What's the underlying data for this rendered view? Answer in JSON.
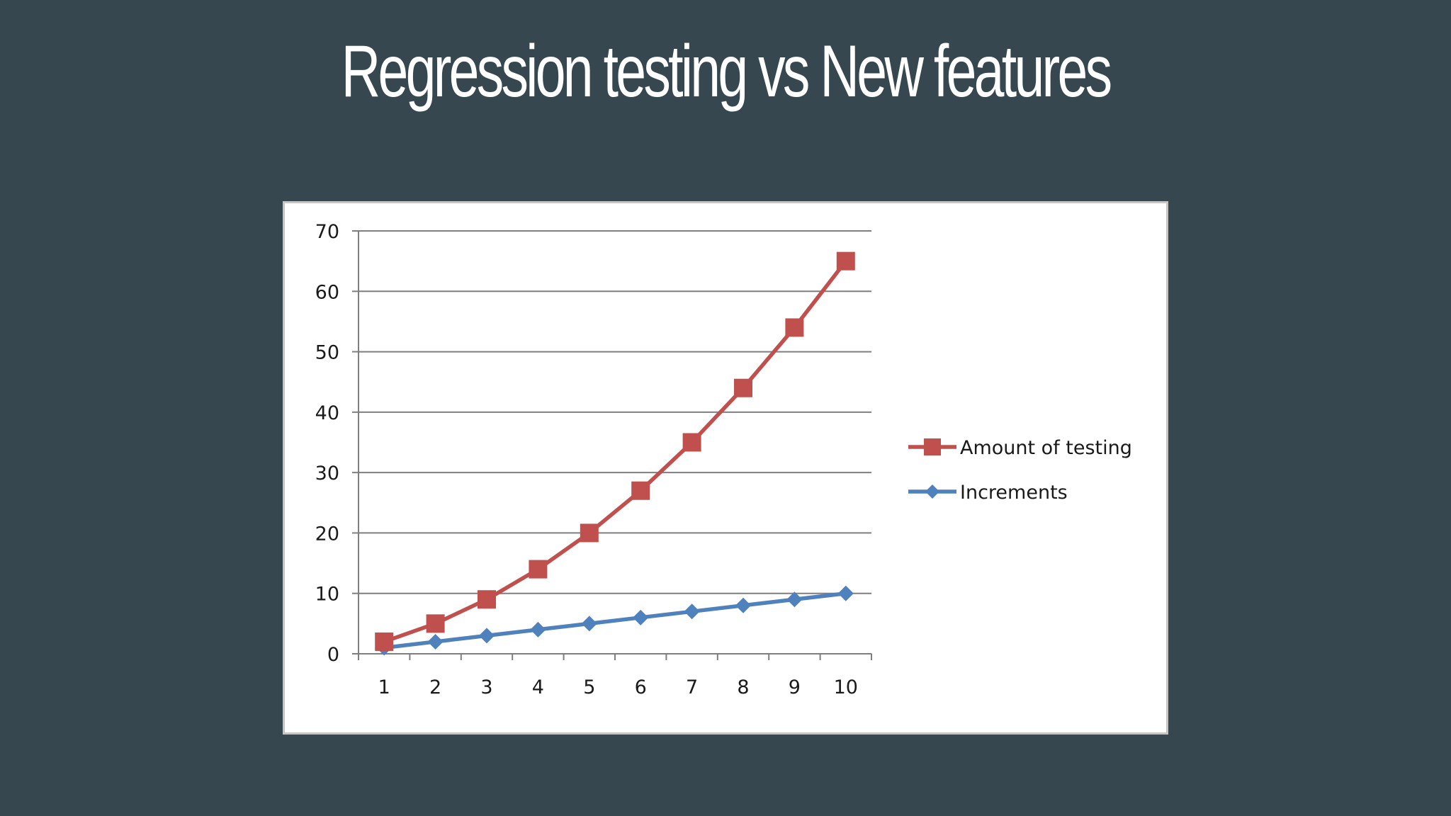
{
  "slide": {
    "title": "Regression testing vs New features",
    "background": "#37474f"
  },
  "chart_data": {
    "type": "line",
    "x": [
      1,
      2,
      3,
      4,
      5,
      6,
      7,
      8,
      9,
      10
    ],
    "ylim": [
      0,
      70
    ],
    "yticks": [
      0,
      10,
      20,
      30,
      40,
      50,
      60,
      70
    ],
    "grid": true,
    "legend_position": "right",
    "series": [
      {
        "name": "Amount of testing",
        "color": "#c0504d",
        "marker": "square",
        "values": [
          2,
          5,
          9,
          14,
          20,
          27,
          35,
          44,
          54,
          65
        ]
      },
      {
        "name": "Increments",
        "color": "#4f81bd",
        "marker": "diamond",
        "values": [
          1,
          2,
          3,
          4,
          5,
          6,
          7,
          8,
          9,
          10
        ]
      }
    ]
  }
}
